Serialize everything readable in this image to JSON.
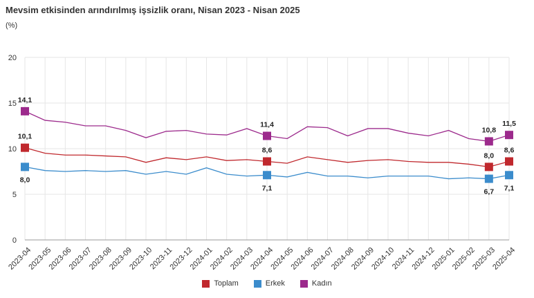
{
  "title": "Mevsim etkisinden arındırılmış işsizlik oranı, Nisan 2023 - Nisan 2025",
  "unit": "(%)",
  "chart_data": {
    "type": "line",
    "title": "Mevsim etkisinden arındırılmış işsizlik oranı, Nisan 2023 - Nisan 2025",
    "ylabel": "(%)",
    "ylim": [
      0,
      20
    ],
    "yticks": [
      "0",
      "5",
      "10",
      "15",
      "20"
    ],
    "grid": true,
    "legend_position": "bottom",
    "categories": [
      "2023-04",
      "2023-05",
      "2023-06",
      "2023-07",
      "2023-08",
      "2023-09",
      "2023-10",
      "2023-11",
      "2023-12",
      "2024-01",
      "2024-02",
      "2024-03",
      "2024-04",
      "2024-05",
      "2024-06",
      "2024-07",
      "2024-08",
      "2024-09",
      "2024-10",
      "2024-11",
      "2024-12",
      "2025-01",
      "2025-02",
      "2025-03",
      "2025-04"
    ],
    "series": [
      {
        "name": "Toplam",
        "color": "#c0282d",
        "values": [
          10.1,
          9.5,
          9.3,
          9.3,
          9.2,
          9.1,
          8.5,
          9.0,
          8.8,
          9.1,
          8.7,
          8.8,
          8.6,
          8.4,
          9.1,
          8.8,
          8.5,
          8.7,
          8.8,
          8.6,
          8.5,
          8.5,
          8.3,
          8.0,
          8.6
        ],
        "labels": {
          "0": "10,1",
          "12": "8,6",
          "23": "8,0",
          "24": "8,6"
        },
        "label_pos": {
          "0": "above",
          "12": "above",
          "23": "above",
          "24": "above"
        }
      },
      {
        "name": "Erkek",
        "color": "#3b8ccc",
        "values": [
          8.0,
          7.6,
          7.5,
          7.6,
          7.5,
          7.6,
          7.2,
          7.5,
          7.2,
          7.9,
          7.2,
          7.0,
          7.1,
          6.9,
          7.4,
          7.0,
          7.0,
          6.8,
          7.0,
          7.0,
          7.0,
          6.7,
          6.8,
          6.7,
          7.1
        ],
        "labels": {
          "0": "8,0",
          "12": "7,1",
          "23": "6,7",
          "24": "7,1"
        },
        "label_pos": {
          "0": "below",
          "12": "below",
          "23": "below",
          "24": "below"
        }
      },
      {
        "name": "Kadın",
        "color": "#9c2a8c",
        "values": [
          14.1,
          13.1,
          12.9,
          12.5,
          12.5,
          12.0,
          11.2,
          11.9,
          12.0,
          11.6,
          11.5,
          12.2,
          11.4,
          11.1,
          12.4,
          12.3,
          11.4,
          12.2,
          12.2,
          11.7,
          11.4,
          12.0,
          11.1,
          10.8,
          11.5
        ],
        "labels": {
          "0": "14,1",
          "12": "11,4",
          "23": "10,8",
          "24": "11,5"
        },
        "label_pos": {
          "0": "above",
          "12": "above",
          "23": "above",
          "24": "above"
        }
      }
    ]
  }
}
